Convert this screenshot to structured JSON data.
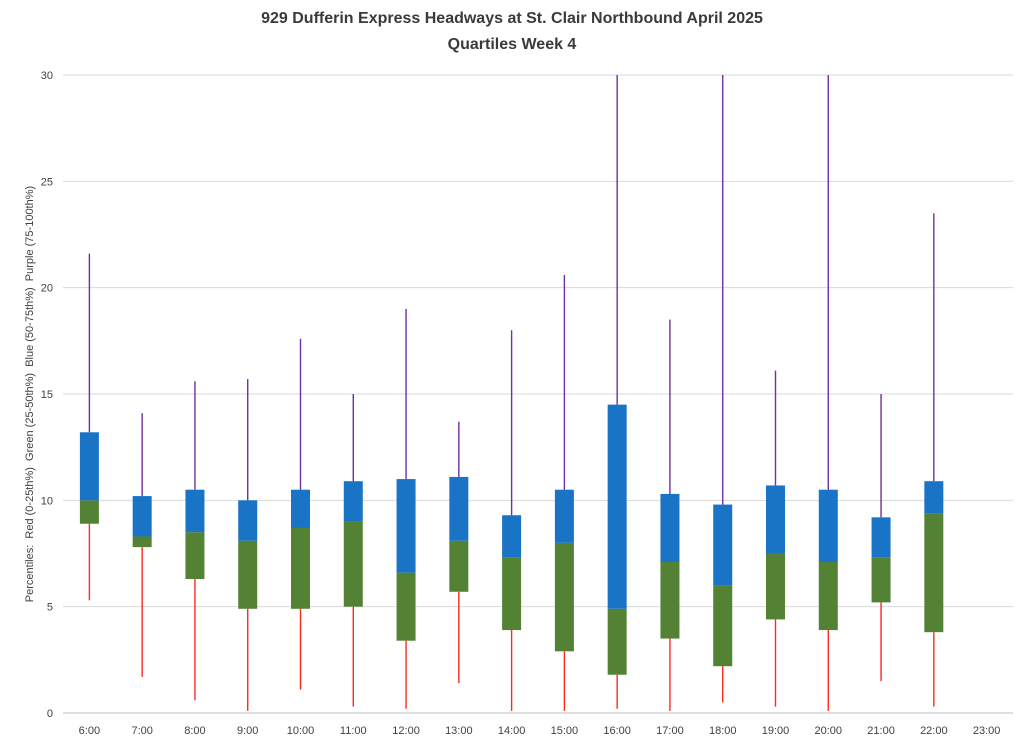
{
  "chart": {
    "title_line1": "929 Dufferin Express Headways at St. Clair Northbound April 2025",
    "title_line2": "Quartiles Week 4",
    "y_axis_label": "Percentiles:  Red (0-25th%)  Green (25-50th%)  Blue (50-75th%)  Purple (75-100th%)"
  },
  "chart_data": {
    "type": "bar",
    "subtype": "stacked-quartile-box-with-whiskers",
    "title": "929 Dufferin Express Headways at St. Clair Northbound April 2025",
    "subtitle": "Quartiles Week 4",
    "ylabel": "Percentiles:  Red (0-25th%)  Green (25-50th%)  Blue (50-75th%)  Purple (75-100th%)",
    "xlabel": "",
    "grid": "horizontal",
    "legend_position": "none",
    "categories": [
      "6:00",
      "7:00",
      "8:00",
      "9:00",
      "10:00",
      "11:00",
      "12:00",
      "13:00",
      "14:00",
      "15:00",
      "16:00",
      "17:00",
      "18:00",
      "19:00",
      "20:00",
      "21:00",
      "22:00",
      "23:00"
    ],
    "y_axis": {
      "min": 0,
      "max": 30,
      "ticks": [
        0,
        5,
        10,
        15,
        20,
        25,
        30
      ]
    },
    "series": {
      "min": [
        5.3,
        1.7,
        0.6,
        0.1,
        1.1,
        0.3,
        0.2,
        1.4,
        0.1,
        0.1,
        0.2,
        0.1,
        0.5,
        0.3,
        0.1,
        1.5,
        0.3,
        null
      ],
      "p25": [
        8.9,
        7.8,
        6.3,
        4.9,
        4.9,
        5.0,
        3.4,
        5.7,
        3.9,
        2.9,
        1.8,
        3.5,
        2.2,
        4.4,
        3.9,
        5.2,
        3.8,
        null
      ],
      "p50": [
        10.0,
        8.3,
        8.5,
        8.1,
        8.7,
        9.0,
        6.6,
        8.1,
        7.3,
        8.0,
        4.9,
        7.1,
        6.0,
        7.5,
        7.1,
        7.3,
        9.4,
        null
      ],
      "p75": [
        13.2,
        10.2,
        10.5,
        10.0,
        10.5,
        10.9,
        11.0,
        11.1,
        9.3,
        10.5,
        14.5,
        10.3,
        9.8,
        10.7,
        10.5,
        9.2,
        10.9,
        null
      ],
      "max": [
        21.6,
        14.1,
        15.6,
        15.7,
        17.6,
        15.0,
        19.0,
        13.7,
        18.0,
        20.6,
        30,
        18.5,
        30,
        16.1,
        30,
        15.0,
        23.5,
        null
      ]
    },
    "series_legend": [
      {
        "name": "Red (0-25th%)",
        "style": "whisker",
        "color": "#fa2a1c"
      },
      {
        "name": "Green (25-50th%)",
        "style": "box",
        "color": "#548235"
      },
      {
        "name": "Blue (50-75th%)",
        "style": "box",
        "color": "#1974c5"
      },
      {
        "name": "Purple (75-100th%)",
        "style": "whisker",
        "color": "#7030a0"
      }
    ],
    "colors": {
      "red": "#fa2a1c",
      "green": "#548235",
      "blue": "#1974c5",
      "purple": "#7030a0",
      "gridline": "#d9d9d9",
      "axis_line": "#bfbfbf",
      "text": "#404040"
    },
    "notes": {
      "clipped_at_axis_max": [
        "16:00",
        "18:00",
        "20:00"
      ]
    }
  }
}
